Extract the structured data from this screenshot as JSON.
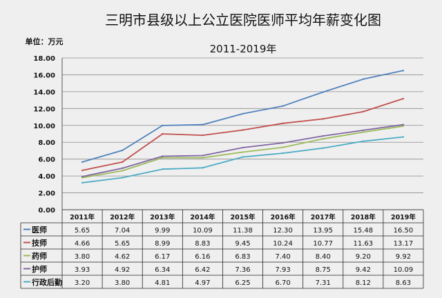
{
  "title": "三明市县级以上公立医院医师平均年薪变化图",
  "subtitle": "2011-2019年",
  "unit_label": "单位：万元",
  "chart_data": {
    "type": "line",
    "title": "三明市县级以上公立医院医师平均年薪变化图",
    "subtitle": "2011-2019年",
    "ylabel": "单位：万元",
    "ylim": [
      0,
      18
    ],
    "yticks": [
      "0.00",
      "2.00",
      "4.00",
      "6.00",
      "8.00",
      "10.00",
      "12.00",
      "14.00",
      "16.00",
      "18.00"
    ],
    "grid": true,
    "categories": [
      "2011年",
      "2012年",
      "2013年",
      "2014年",
      "2015年",
      "2016年",
      "2017年",
      "2018年",
      "2019年"
    ],
    "series": [
      {
        "name": "医师",
        "color": "#4f81bd",
        "values": [
          5.65,
          7.04,
          9.99,
          10.09,
          11.38,
          12.3,
          13.95,
          15.48,
          16.5
        ],
        "labels": [
          "5.65",
          "7.04",
          "9.99",
          "10.09",
          "11.38",
          "12.30",
          "13.95",
          "15.48",
          "16.50"
        ]
      },
      {
        "name": "技师",
        "color": "#c0504d",
        "values": [
          4.66,
          5.65,
          8.99,
          8.83,
          9.45,
          10.24,
          10.77,
          11.63,
          13.17
        ],
        "labels": [
          "4.66",
          "5.65",
          "8.99",
          "8.83",
          "9.45",
          "10.24",
          "10.77",
          "11.63",
          "13.17"
        ]
      },
      {
        "name": "药师",
        "color": "#9bbb59",
        "values": [
          3.8,
          4.62,
          6.17,
          6.16,
          6.83,
          7.4,
          8.4,
          9.2,
          9.92
        ],
        "labels": [
          "3.80",
          "4.62",
          "6.17",
          "6.16",
          "6.83",
          "7.40",
          "8.40",
          "9.20",
          "9.92"
        ]
      },
      {
        "name": "护师",
        "color": "#8064a2",
        "values": [
          3.93,
          4.92,
          6.34,
          6.42,
          7.36,
          7.93,
          8.75,
          9.42,
          10.09
        ],
        "labels": [
          "3.93",
          "4.92",
          "6.34",
          "6.42",
          "7.36",
          "7.93",
          "8.75",
          "9.42",
          "10.09"
        ]
      },
      {
        "name": "行政后勤",
        "color": "#4bacc6",
        "values": [
          3.2,
          3.8,
          4.81,
          4.97,
          6.25,
          6.7,
          7.31,
          8.12,
          8.63
        ],
        "labels": [
          "3.20",
          "3.80",
          "4.81",
          "4.97",
          "6.25",
          "6.70",
          "7.31",
          "8.12",
          "8.63"
        ]
      }
    ]
  }
}
